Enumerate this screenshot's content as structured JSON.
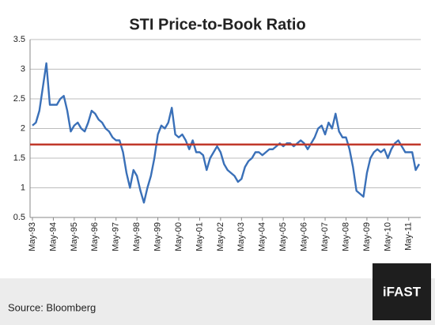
{
  "chart_data": {
    "type": "line",
    "title": "STI Price-to-Book Ratio",
    "categories": [
      "May-93",
      null,
      null,
      null,
      null,
      null,
      "May-94",
      null,
      null,
      null,
      null,
      null,
      "May-95",
      null,
      null,
      null,
      null,
      null,
      "May-96",
      null,
      null,
      null,
      null,
      null,
      "May-97",
      null,
      null,
      null,
      null,
      null,
      "May-98",
      null,
      null,
      null,
      null,
      null,
      "May-99",
      null,
      null,
      null,
      null,
      null,
      "May-00",
      null,
      null,
      null,
      null,
      null,
      "May-01",
      null,
      null,
      null,
      null,
      null,
      "May-02",
      null,
      null,
      null,
      null,
      null,
      "May-03",
      null,
      null,
      null,
      null,
      null,
      "May-04",
      null,
      null,
      null,
      null,
      null,
      "May-05",
      null,
      null,
      null,
      null,
      null,
      "May-06",
      null,
      null,
      null,
      null,
      null,
      "May-07",
      null,
      null,
      null,
      null,
      null,
      "May-08",
      null,
      null,
      null,
      null,
      null,
      "May-09",
      null,
      null,
      null,
      null,
      null,
      "May-10",
      null,
      null,
      null,
      null,
      null,
      "May-11",
      null,
      null,
      null
    ],
    "series": [
      {
        "color": "#3a70b8",
        "values": [
          2.05,
          2.1,
          2.3,
          2.7,
          3.1,
          2.4,
          2.4,
          2.4,
          2.5,
          2.55,
          2.3,
          1.95,
          2.05,
          2.1,
          2.0,
          1.95,
          2.1,
          2.3,
          2.25,
          2.15,
          2.1,
          2.0,
          1.95,
          1.85,
          1.8,
          1.8,
          1.6,
          1.25,
          1.0,
          1.3,
          1.2,
          0.95,
          0.75,
          1.0,
          1.2,
          1.5,
          1.9,
          2.05,
          2.0,
          2.1,
          2.35,
          1.9,
          1.85,
          1.9,
          1.8,
          1.65,
          1.8,
          1.6,
          1.6,
          1.55,
          1.3,
          1.5,
          1.6,
          1.7,
          1.6,
          1.4,
          1.3,
          1.25,
          1.2,
          1.1,
          1.15,
          1.35,
          1.45,
          1.5,
          1.6,
          1.6,
          1.55,
          1.6,
          1.65,
          1.65,
          1.7,
          1.75,
          1.7,
          1.75,
          1.75,
          1.7,
          1.75,
          1.8,
          1.75,
          1.65,
          1.75,
          1.85,
          2.0,
          2.05,
          1.9,
          2.1,
          2.0,
          2.25,
          1.95,
          1.85,
          1.85,
          1.65,
          1.35,
          0.95,
          0.9,
          0.85,
          1.25,
          1.5,
          1.6,
          1.65,
          1.6,
          1.65,
          1.5,
          1.65,
          1.75,
          1.8,
          1.7,
          1.6,
          1.6,
          1.6,
          1.3,
          1.4
        ]
      }
    ],
    "reference_line": {
      "value": 1.73,
      "color": "#c0392b"
    },
    "ylim": [
      0.5,
      3.5
    ],
    "yticks": [
      0.5,
      1,
      1.5,
      2,
      2.5,
      3,
      3.5
    ],
    "grid": true,
    "source": "Source: Bloomberg",
    "logo": "iFAST"
  }
}
